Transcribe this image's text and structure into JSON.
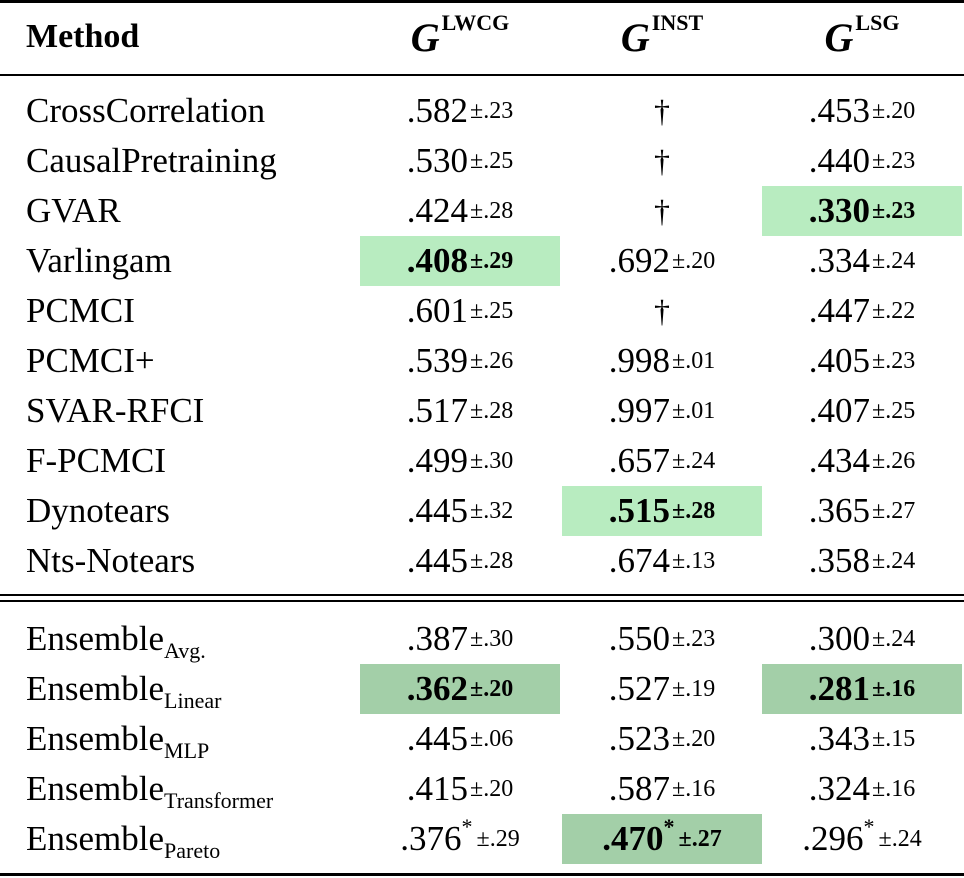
{
  "header": {
    "method_label": "Method",
    "col1": {
      "letter": "G",
      "sup": "LWCG"
    },
    "col2": {
      "letter": "G",
      "sup": "INST"
    },
    "col3": {
      "letter": "G",
      "sup": "LSG"
    }
  },
  "group1": [
    {
      "name": "CrossCorrelation",
      "v1": {
        "m": ".582",
        "pm": "±",
        "s": ".23"
      },
      "v2": {
        "dagger": "†"
      },
      "v3": {
        "m": ".453",
        "pm": "±",
        "s": ".20"
      }
    },
    {
      "name": "CausalPretraining",
      "v1": {
        "m": ".530",
        "pm": "±",
        "s": ".25"
      },
      "v2": {
        "dagger": "†"
      },
      "v3": {
        "m": ".440",
        "pm": "±",
        "s": ".23"
      }
    },
    {
      "name": "GVAR",
      "v1": {
        "m": ".424",
        "pm": "±",
        "s": ".28"
      },
      "v2": {
        "dagger": "†"
      },
      "v3": {
        "m": ".330",
        "pm": "±",
        "s": ".23"
      }
    },
    {
      "name": "Varlingam",
      "v1": {
        "m": ".408",
        "pm": "±",
        "s": ".29"
      },
      "v2": {
        "m": ".692",
        "pm": "±",
        "s": ".20"
      },
      "v3": {
        "m": ".334",
        "pm": "±",
        "s": ".24"
      }
    },
    {
      "name": "PCMCI",
      "v1": {
        "m": ".601",
        "pm": "±",
        "s": ".25"
      },
      "v2": {
        "dagger": "†"
      },
      "v3": {
        "m": ".447",
        "pm": "±",
        "s": ".22"
      }
    },
    {
      "name": "PCMCI+",
      "v1": {
        "m": ".539",
        "pm": "±",
        "s": ".26"
      },
      "v2": {
        "m": ".998",
        "pm": "±",
        "s": ".01"
      },
      "v3": {
        "m": ".405",
        "pm": "±",
        "s": ".23"
      }
    },
    {
      "name": "SVAR-RFCI",
      "v1": {
        "m": ".517",
        "pm": "±",
        "s": ".28"
      },
      "v2": {
        "m": ".997",
        "pm": "±",
        "s": ".01"
      },
      "v3": {
        "m": ".407",
        "pm": "±",
        "s": ".25"
      }
    },
    {
      "name": "F-PCMCI",
      "v1": {
        "m": ".499",
        "pm": "±",
        "s": ".30"
      },
      "v2": {
        "m": ".657",
        "pm": "±",
        "s": ".24"
      },
      "v3": {
        "m": ".434",
        "pm": "±",
        "s": ".26"
      }
    },
    {
      "name": "Dynotears",
      "v1": {
        "m": ".445",
        "pm": "±",
        "s": ".32"
      },
      "v2": {
        "m": ".515",
        "pm": "±",
        "s": ".28"
      },
      "v3": {
        "m": ".365",
        "pm": "±",
        "s": ".27"
      }
    },
    {
      "name": "Nts-Notears",
      "v1": {
        "m": ".445",
        "pm": "±",
        "s": ".28"
      },
      "v2": {
        "m": ".674",
        "pm": "±",
        "s": ".13"
      },
      "v3": {
        "m": ".358",
        "pm": "±",
        "s": ".24"
      }
    }
  ],
  "group2": [
    {
      "name": "Ensemble",
      "sub": "Avg.",
      "v1": {
        "m": ".387",
        "pm": "±",
        "s": ".30"
      },
      "v2": {
        "m": ".550",
        "pm": "±",
        "s": ".23"
      },
      "v3": {
        "m": ".300",
        "pm": "±",
        "s": ".24"
      }
    },
    {
      "name": "Ensemble",
      "sub": "Linear",
      "v1": {
        "m": ".362",
        "pm": "±",
        "s": ".20"
      },
      "v2": {
        "m": ".527",
        "pm": "±",
        "s": ".19"
      },
      "v3": {
        "m": ".281",
        "pm": "±",
        "s": ".16"
      }
    },
    {
      "name": "Ensemble",
      "sub": "MLP",
      "v1": {
        "m": ".445",
        "pm": "±",
        "s": ".06"
      },
      "v2": {
        "m": ".523",
        "pm": "±",
        "s": ".20"
      },
      "v3": {
        "m": ".343",
        "pm": "±",
        "s": ".15"
      }
    },
    {
      "name": "Ensemble",
      "sub": "Transformer",
      "v1": {
        "m": ".415",
        "pm": "±",
        "s": ".20"
      },
      "v2": {
        "m": ".587",
        "pm": "±",
        "s": ".16"
      },
      "v3": {
        "m": ".324",
        "pm": "±",
        "s": ".16"
      }
    },
    {
      "name": "Ensemble",
      "sub": "Pareto",
      "v1": {
        "m": ".376",
        "star": "*",
        "pm": "±",
        "s": ".29"
      },
      "v2": {
        "m": ".470",
        "star": "*",
        "pm": "±",
        "s": ".27"
      },
      "v3": {
        "m": ".296",
        "star": "*",
        "pm": "±",
        "s": ".24"
      }
    }
  ],
  "highlight_colors": {
    "best_baseline": "#b8ecc0",
    "best_ensemble": "#a3cfa8"
  }
}
